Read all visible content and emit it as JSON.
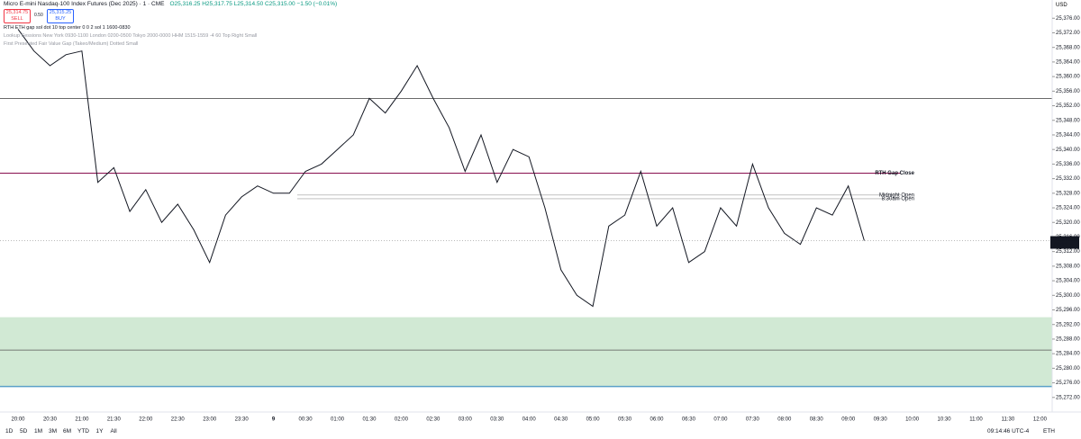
{
  "header": {
    "title": "Micro E-mini Nasdaq-100 Index Futures (Dec 2025) · 1 · CME",
    "ohlc": "O25,316.25 H25,317.75 L25,314.50 C25,315.00 −1.50 (−0.01%)",
    "currency": "USD"
  },
  "trade": {
    "sell_price": "25,314.75",
    "sell": "SELL",
    "spread": "0.50",
    "buy_price": "25,315.25",
    "buy": "BUY"
  },
  "indicators": [
    "RTH ETH gap sol dot 10 top center 0 0 2 sol 1 1600-0830",
    "Lookup Sessions New York 0930-1100 London 0200-0500 Tokyo 2000-0000 HHM 1515-1559 -4 60 Top Right Small",
    "First Presented Fair Value Gap (Takeo/Medium) Dotted Small"
  ],
  "toolbar": {
    "ranges": [
      "1D",
      "5D",
      "1M",
      "3M",
      "6M",
      "YTD",
      "1Y",
      "All"
    ],
    "clock": "09:14:46 UTC-4",
    "session": "ETH"
  },
  "chart_data": {
    "type": "line",
    "color": "#131722",
    "x": [
      "20:00",
      "20:15",
      "20:30",
      "20:45",
      "21:00",
      "21:15",
      "21:30",
      "21:45",
      "22:00",
      "22:15",
      "22:30",
      "22:45",
      "23:00",
      "23:15",
      "23:30",
      "23:45",
      "00:00",
      "00:15",
      "00:30",
      "00:45",
      "01:00",
      "01:15",
      "01:30",
      "01:45",
      "02:00",
      "02:15",
      "02:30",
      "02:45",
      "03:00",
      "03:15",
      "03:30",
      "03:45",
      "04:00",
      "04:15",
      "04:30",
      "04:45",
      "05:00",
      "05:15",
      "05:30",
      "05:45",
      "06:00",
      "06:15",
      "06:30",
      "06:45",
      "07:00",
      "07:15",
      "07:30",
      "07:45",
      "08:00",
      "08:15",
      "08:30",
      "08:45",
      "09:00",
      "09:15"
    ],
    "values": [
      25373,
      25367,
      25363,
      25366,
      25367,
      25331,
      25335,
      25323,
      25329,
      25320,
      25325,
      25318,
      25309,
      25322,
      25327,
      25330,
      25328,
      25328,
      25334,
      25336,
      25340,
      25344,
      25354,
      25350,
      25356,
      25363,
      25354,
      25346,
      25334,
      25344,
      25331,
      25340,
      25338,
      25324,
      25307,
      25300,
      25297,
      25319,
      25322,
      25334,
      25319,
      25324,
      25309,
      25312,
      25324,
      25319,
      25336,
      25324,
      25317,
      25314,
      25324,
      25322,
      25330,
      25315
    ],
    "xticks": [
      "20:00",
      "20:30",
      "21:00",
      "21:30",
      "22:00",
      "22:30",
      "23:00",
      "23:30",
      "9",
      "00:30",
      "01:00",
      "01:30",
      "02:00",
      "02:30",
      "03:00",
      "03:30",
      "04:00",
      "04:30",
      "05:00",
      "05:30",
      "06:00",
      "06:30",
      "07:00",
      "07:30",
      "08:00",
      "08:30",
      "09:00",
      "09:30",
      "10:00",
      "10:30",
      "11:00",
      "11:30",
      "12:00"
    ],
    "ylim": [
      25268,
      25381
    ],
    "yticks": [
      {
        "value": 25272,
        "label": "25,272.00"
      },
      {
        "value": 25276,
        "label": "25,276.00"
      },
      {
        "value": 25280,
        "label": "25,280.00"
      },
      {
        "value": 25284,
        "label": "25,284.00"
      },
      {
        "value": 25288,
        "label": "25,288.00"
      },
      {
        "value": 25292,
        "label": "25,292.00"
      },
      {
        "value": 25296,
        "label": "25,296.00"
      },
      {
        "value": 25300,
        "label": "25,300.00"
      },
      {
        "value": 25304,
        "label": "25,304.00"
      },
      {
        "value": 25308,
        "label": "25,308.00"
      },
      {
        "value": 25312,
        "label": "25,312.00"
      },
      {
        "value": 25316,
        "label": "25,316.00"
      },
      {
        "value": 25320,
        "label": "25,320.00"
      },
      {
        "value": 25324,
        "label": "25,324.00"
      },
      {
        "value": 25328,
        "label": "25,328.00"
      },
      {
        "value": 25332,
        "label": "25,332.00"
      },
      {
        "value": 25336,
        "label": "25,336.00"
      },
      {
        "value": 25340,
        "label": "25,340.00"
      },
      {
        "value": 25344,
        "label": "25,344.00"
      },
      {
        "value": 25348,
        "label": "25,348.00"
      },
      {
        "value": 25352,
        "label": "25,352.00"
      },
      {
        "value": 25356,
        "label": "25,356.00"
      },
      {
        "value": 25360,
        "label": "25,360.00"
      },
      {
        "value": 25364,
        "label": "25,364.00"
      },
      {
        "value": 25368,
        "label": "25,368.00"
      },
      {
        "value": 25372,
        "label": "25,372.00"
      },
      {
        "value": 25376,
        "label": "25,376.00"
      }
    ],
    "levels": [
      {
        "label": "RTH Gap Close",
        "value": 25333.5,
        "color": "#880e4f"
      },
      {
        "label": "Midnight Open",
        "value": 25327.5,
        "color": "#9e9e9e"
      },
      {
        "label": "8:30am Open",
        "value": 25326.5,
        "color": "#9e9e9e"
      }
    ],
    "lines": [
      25354,
      25285
    ],
    "zone": [
      25275,
      25294
    ],
    "last": {
      "value": 25315,
      "label": "25,315.00",
      "countdown": "00:13"
    }
  }
}
